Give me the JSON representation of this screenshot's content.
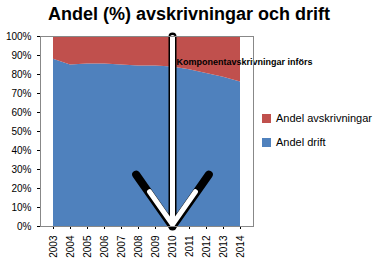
{
  "chart_data": {
    "type": "area",
    "title": "Andel (%) avskrivningar och drift",
    "stacked": true,
    "grid": false,
    "categories": [
      "2003",
      "2004",
      "2005",
      "2006",
      "2007",
      "2008",
      "2009",
      "2010",
      "2011",
      "2012",
      "2013",
      "2014"
    ],
    "series": [
      {
        "name": "Andel drift",
        "color": "#4f81bd",
        "values": [
          88,
          85,
          85.5,
          85.5,
          85,
          84.5,
          84.5,
          84,
          82.5,
          80.5,
          78.5,
          76
        ]
      },
      {
        "name": "Andel avskrivningar",
        "color": "#c0504d",
        "values": [
          12,
          15,
          14.5,
          14.5,
          15,
          15.5,
          15.5,
          16,
          17.5,
          19.5,
          21.5,
          24
        ]
      }
    ],
    "ylim": [
      0,
      100
    ],
    "yticks": [
      {
        "value": 0,
        "label": "0%"
      },
      {
        "value": 10,
        "label": "10%"
      },
      {
        "value": 20,
        "label": "20%"
      },
      {
        "value": 30,
        "label": "30%"
      },
      {
        "value": 40,
        "label": "40%"
      },
      {
        "value": 50,
        "label": "50%"
      },
      {
        "value": 60,
        "label": "60%"
      },
      {
        "value": 70,
        "label": "70%"
      },
      {
        "value": 80,
        "label": "80%"
      },
      {
        "value": 90,
        "label": "90%"
      },
      {
        "value": 100,
        "label": "100%"
      }
    ],
    "legend": "right",
    "annotations": [
      {
        "text": "Komponentavskrivningar införs",
        "x": "2010"
      }
    ]
  }
}
